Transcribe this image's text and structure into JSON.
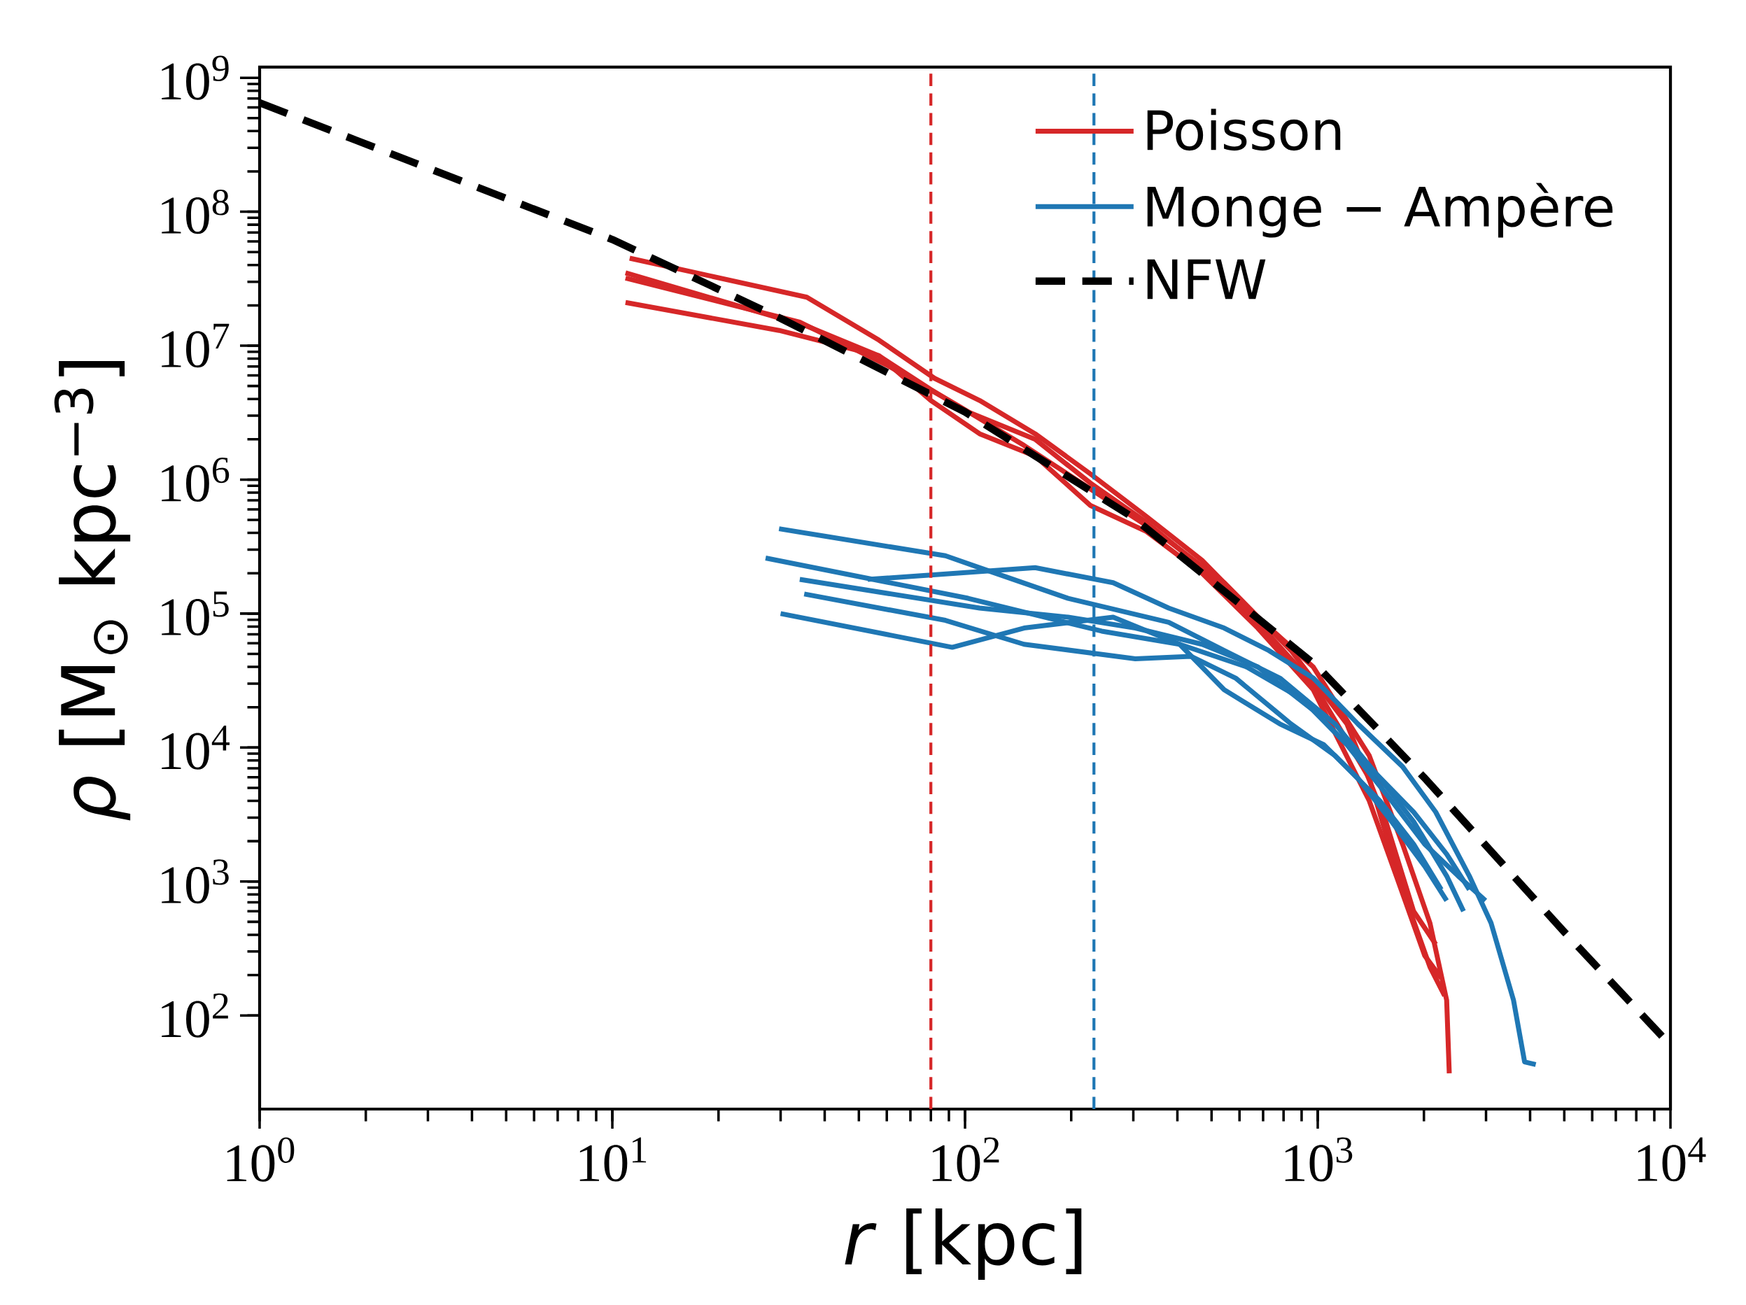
{
  "chart_data": {
    "type": "line",
    "xlabel": "*r* [kpc]",
    "ylabel": "*ρ* [M$_{⊙}$ kpc$^{−3}$]",
    "log": "xy",
    "xlim": [
      1,
      10000
    ],
    "ylim": [
      20,
      1200000000
    ],
    "xticks": [
      {
        "value": 1,
        "label": "10$^{0}$"
      },
      {
        "value": 10,
        "label": "10$^{1}$"
      },
      {
        "value": 100,
        "label": "10$^{2}$"
      },
      {
        "value": 1000,
        "label": "10$^{3}$"
      },
      {
        "value": 10000,
        "label": "10$^{4}$"
      }
    ],
    "yticks": [
      {
        "value": 100,
        "label": "10$^{2}$"
      },
      {
        "value": 1000,
        "label": "10$^{3}$"
      },
      {
        "value": 10000,
        "label": "10$^{4}$"
      },
      {
        "value": 100000,
        "label": "10$^{5}$"
      },
      {
        "value": 1000000,
        "label": "10$^{6}$"
      },
      {
        "value": 10000000,
        "label": "10$^{7}$"
      },
      {
        "value": 100000000,
        "label": "10$^{8}$"
      },
      {
        "value": 1000000000,
        "label": "10$^{9}$"
      }
    ],
    "grid": false,
    "legend": "top right",
    "line_style": "solid",
    "ref_lines": [
      {
        "axis": "x",
        "value": 80,
        "color": "#d62728",
        "line_style": "dashed"
      },
      {
        "axis": "x",
        "value": 232,
        "color": "#1f77b4",
        "line_style": "dashed"
      }
    ],
    "series": [
      {
        "name": "Poisson",
        "color": "#d62728",
        "x": [
          11.2,
          35.6,
          57,
          82,
          110,
          158,
          227,
          327,
          470,
          676,
          971,
          1400,
          1740,
          2080,
          2320,
          2360
        ],
        "values": [
          45000000,
          23000000,
          11000000,
          5700000,
          3900000,
          2200000,
          1100000,
          530000,
          250000,
          94000,
          40000,
          8700,
          1900,
          490,
          130,
          37
        ]
      },
      {
        "color": "#d62728",
        "x": [
          10.9,
          35.6,
          57,
          80,
          102,
          158,
          227,
          327,
          470,
          676,
          971,
          1400,
          1740,
          2080,
          2290
        ],
        "values": [
          35000000,
          14000000,
          8400000,
          4700000,
          3200000,
          2000000,
          940000,
          480000,
          220000,
          86000,
          30000,
          5900,
          870,
          230,
          140
        ]
      },
      {
        "color": "#d62728",
        "x": [
          10.9,
          29.7,
          57,
          80,
          110,
          158,
          227,
          327,
          470,
          676,
          971,
          1400,
          1670,
          2010,
          2240
        ],
        "values": [
          21000000,
          13000000,
          8400000,
          3900000,
          2200000,
          1500000,
          640000,
          410000,
          200000,
          78000,
          27000,
          4000,
          1100,
          280,
          190
        ]
      },
      {
        "color": "#d62728",
        "x": [
          10.9,
          34,
          61,
          95,
          147,
          227,
          352,
          543,
          840,
          1210,
          1560,
          1870,
          2160
        ],
        "values": [
          32000000,
          15000000,
          7000000,
          3600000,
          1800000,
          850000,
          400000,
          170000,
          53000,
          15000,
          2800,
          600,
          340
        ]
      },
      {
        "name": "Monge − Ampère",
        "color": "#1f77b4",
        "x": [
          29.7,
          88,
          110,
          196,
          378,
          543,
          781,
          1120,
          1500,
          1870,
          2320,
          2590
        ],
        "values": [
          430000,
          270000,
          220000,
          130000,
          86000,
          53000,
          33000,
          15000,
          5900,
          2800,
          1100,
          600
        ]
      },
      {
        "color": "#1f77b4",
        "x": [
          27.2,
          102,
          244,
          406,
          628,
          903,
          1210,
          1620,
          2010,
          2500,
          2990
        ],
        "values": [
          260000,
          130000,
          74000,
          59000,
          40000,
          23000,
          10500,
          4000,
          1900,
          1100,
          720
        ]
      },
      {
        "color": "#1f77b4",
        "x": [
          53,
          158,
          263,
          378,
          543,
          727,
          971,
          1300,
          1740,
          2160,
          2690,
          3100,
          3590,
          3860,
          4150
        ],
        "values": [
          180000,
          220000,
          170000,
          110000,
          78000,
          53000,
          33000,
          15000,
          7200,
          3300,
          1100,
          490,
          130,
          45,
          43
        ]
      },
      {
        "color": "#1f77b4",
        "x": [
          34,
          110,
          196,
          304,
          470,
          676,
          971,
          1400,
          1870,
          2320,
          2690
        ],
        "values": [
          180000,
          110000,
          94000,
          78000,
          59000,
          40000,
          19000,
          7200,
          3300,
          1600,
          870
        ]
      },
      {
        "color": "#1f77b4",
        "x": [
          35,
          88,
          147,
          304,
          437,
          585,
          840,
          1120,
          1500,
          1870,
          2240
        ],
        "values": [
          140000,
          89000,
          59000,
          46000,
          48000,
          33000,
          15000,
          8700,
          4000,
          1900,
          870
        ]
      },
      {
        "color": "#1f77b4",
        "x": [
          30,
          92,
          147,
          263,
          406,
          543,
          781,
          1040,
          1300,
          1620,
          2010,
          2320
        ],
        "values": [
          100000,
          56000,
          78000,
          94000,
          59000,
          27000,
          15000,
          10500,
          5900,
          2800,
          1300,
          720
        ]
      },
      {
        "name": "NFW",
        "color": "#000000",
        "line_style": "dashed",
        "x": [
          1,
          10,
          30,
          100,
          300,
          1000,
          2000,
          5000,
          10000
        ],
        "values": [
          650000000,
          62000000,
          16000000,
          3200000,
          520000,
          40000,
          6000,
          420,
          60
        ]
      }
    ]
  }
}
